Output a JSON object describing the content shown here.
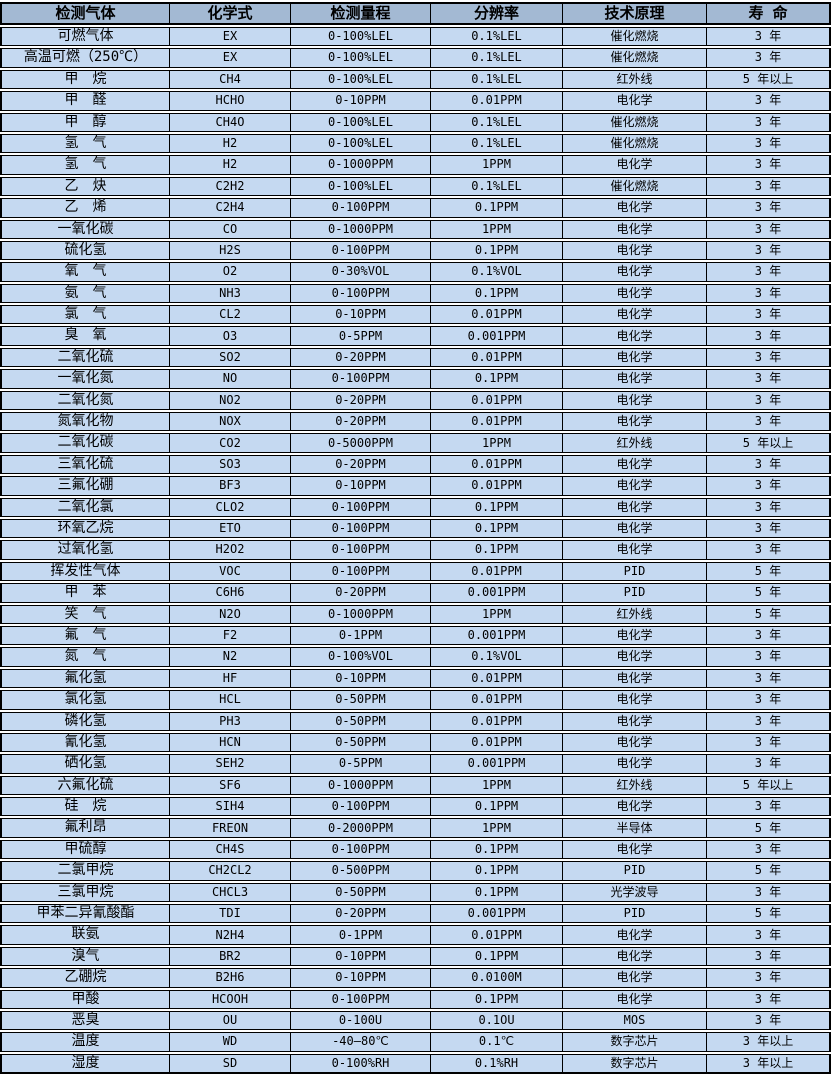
{
  "colors": {
    "header_bg": "#a3b9d3",
    "row_bg": "#c5d9f1",
    "border": "#000000",
    "gap_bg": "#ffffff",
    "text": "#000000"
  },
  "table": {
    "columns": [
      {
        "key": "gas",
        "label": "检测气体"
      },
      {
        "key": "formula",
        "label": "化学式"
      },
      {
        "key": "range",
        "label": "检测量程"
      },
      {
        "key": "resolution",
        "label": "分辨率"
      },
      {
        "key": "principle",
        "label": "技术原理"
      },
      {
        "key": "lifespan",
        "label": "寿 命"
      }
    ],
    "rows": [
      [
        "可燃气体",
        "EX",
        "0-100%LEL",
        "0.1%LEL",
        "催化燃烧",
        "3 年"
      ],
      [
        "高温可燃（250℃）",
        "EX",
        "0-100%LEL",
        "0.1%LEL",
        "催化燃烧",
        "3 年"
      ],
      [
        "甲　烷",
        "CH4",
        "0-100%LEL",
        "0.1%LEL",
        "红外线",
        "5 年以上"
      ],
      [
        "甲　醛",
        "HCHO",
        "0-10PPM",
        "0.01PPM",
        "电化学",
        "3 年"
      ],
      [
        "甲　醇",
        "CH4O",
        "0-100%LEL",
        "0.1%LEL",
        "催化燃烧",
        "3 年"
      ],
      [
        "氢　气",
        "H2",
        "0-100%LEL",
        "0.1%LEL",
        "催化燃烧",
        "3 年"
      ],
      [
        "氢　气",
        "H2",
        "0-1000PPM",
        "1PPM",
        "电化学",
        "3 年"
      ],
      [
        "乙　炔",
        "C2H2",
        "0-100%LEL",
        "0.1%LEL",
        "催化燃烧",
        "3 年"
      ],
      [
        "乙　烯",
        "C2H4",
        "0-100PPM",
        "0.1PPM",
        "电化学",
        "3 年"
      ],
      [
        "一氧化碳",
        "CO",
        "0-1000PPM",
        "1PPM",
        "电化学",
        "3 年"
      ],
      [
        "硫化氢",
        "H2S",
        "0-100PPM",
        "0.1PPM",
        "电化学",
        "3 年"
      ],
      [
        "氧　气",
        "O2",
        "0-30%VOL",
        "0.1%VOL",
        "电化学",
        "3 年"
      ],
      [
        "氨　气",
        "NH3",
        "0-100PPM",
        "0.1PPM",
        "电化学",
        "3 年"
      ],
      [
        "氯　气",
        "CL2",
        "0-10PPM",
        "0.01PPM",
        "电化学",
        "3 年"
      ],
      [
        "臭　氧",
        "O3",
        "0-5PPM",
        "0.001PPM",
        "电化学",
        "3 年"
      ],
      [
        "二氧化硫",
        "SO2",
        "0-20PPM",
        "0.01PPM",
        "电化学",
        "3 年"
      ],
      [
        "一氧化氮",
        "NO",
        "0-100PPM",
        "0.1PPM",
        "电化学",
        "3 年"
      ],
      [
        "二氧化氮",
        "NO2",
        "0-20PPM",
        "0.01PPM",
        "电化学",
        "3 年"
      ],
      [
        "氮氧化物",
        "NOX",
        "0-20PPM",
        "0.01PPM",
        "电化学",
        "3 年"
      ],
      [
        "二氧化碳",
        "CO2",
        "0-5000PPM",
        "1PPM",
        "红外线",
        "5 年以上"
      ],
      [
        "三氧化硫",
        "SO3",
        "0-20PPM",
        "0.01PPM",
        "电化学",
        "3 年"
      ],
      [
        "三氟化硼",
        "BF3",
        "0-10PPM",
        "0.01PPM",
        "电化学",
        "3 年"
      ],
      [
        "二氧化氯",
        "CLO2",
        "0-100PPM",
        "0.1PPM",
        "电化学",
        "3 年"
      ],
      [
        "环氧乙烷",
        "ETO",
        "0-100PPM",
        "0.1PPM",
        "电化学",
        "3 年"
      ],
      [
        "过氧化氢",
        "H2O2",
        "0-100PPM",
        "0.1PPM",
        "电化学",
        "3 年"
      ],
      [
        "挥发性气体",
        "VOC",
        "0-100PPM",
        "0.01PPM",
        "PID",
        "5 年"
      ],
      [
        "甲　苯",
        "C6H6",
        "0-20PPM",
        "0.001PPM",
        "PID",
        "5 年"
      ],
      [
        "笑　气",
        "N2O",
        "0-1000PPM",
        "1PPM",
        "红外线",
        "5 年"
      ],
      [
        "氟　气",
        "F2",
        "0-1PPM",
        "0.001PPM",
        "电化学",
        "3 年"
      ],
      [
        "氮　气",
        "N2",
        "0-100%VOL",
        "0.1%VOL",
        "电化学",
        "3 年"
      ],
      [
        "氟化氢",
        "HF",
        "0-10PPM",
        "0.01PPM",
        "电化学",
        "3 年"
      ],
      [
        "氯化氢",
        "HCL",
        "0-50PPM",
        "0.01PPM",
        "电化学",
        "3 年"
      ],
      [
        "磷化氢",
        "PH3",
        "0-50PPM",
        "0.01PPM",
        "电化学",
        "3 年"
      ],
      [
        "氰化氢",
        "HCN",
        "0-50PPM",
        "0.01PPM",
        "电化学",
        "3 年"
      ],
      [
        "硒化氢",
        "SEH2",
        "0-5PPM",
        "0.001PPM",
        "电化学",
        "3 年"
      ],
      [
        "六氟化硫",
        "SF6",
        "0-1000PPM",
        "1PPM",
        "红外线",
        "5 年以上"
      ],
      [
        "硅　烷",
        "SIH4",
        "0-100PPM",
        "0.1PPM",
        "电化学",
        "3 年"
      ],
      [
        "氟利昂",
        "FREON",
        "0-2000PPM",
        "1PPM",
        "半导体",
        "5 年"
      ],
      [
        "甲硫醇",
        "CH4S",
        "0-100PPM",
        "0.1PPM",
        "电化学",
        "3 年"
      ],
      [
        "二氯甲烷",
        "CH2CL2",
        "0-500PPM",
        "0.1PPM",
        "PID",
        "5 年"
      ],
      [
        "三氯甲烷",
        "CHCL3",
        "0-50PPM",
        "0.1PPM",
        "光学波导",
        "3 年"
      ],
      [
        "甲苯二异氰酸酯",
        "TDI",
        "0-20PPM",
        "0.001PPM",
        "PID",
        "5 年"
      ],
      [
        "联氨",
        "N2H4",
        "0-1PPM",
        "0.01PPM",
        "电化学",
        "3 年"
      ],
      [
        "溴气",
        "BR2",
        "0-10PPM",
        "0.1PPM",
        "电化学",
        "3 年"
      ],
      [
        "乙硼烷",
        "B2H6",
        "0-10PPM",
        "0.0100M",
        "电化学",
        "3 年"
      ],
      [
        "甲酸",
        "HCOOH",
        "0-100PPM",
        "0.1PPM",
        "电化学",
        "3 年"
      ],
      [
        "恶臭",
        "OU",
        "0-100U",
        "0.1OU",
        "MOS",
        "3 年"
      ],
      [
        "温度",
        "WD",
        "-40—80℃",
        "0.1℃",
        "数字芯片",
        "3 年以上"
      ],
      [
        "湿度",
        "SD",
        "0-100%RH",
        "0.1%RH",
        "数字芯片",
        "3 年以上"
      ]
    ]
  }
}
